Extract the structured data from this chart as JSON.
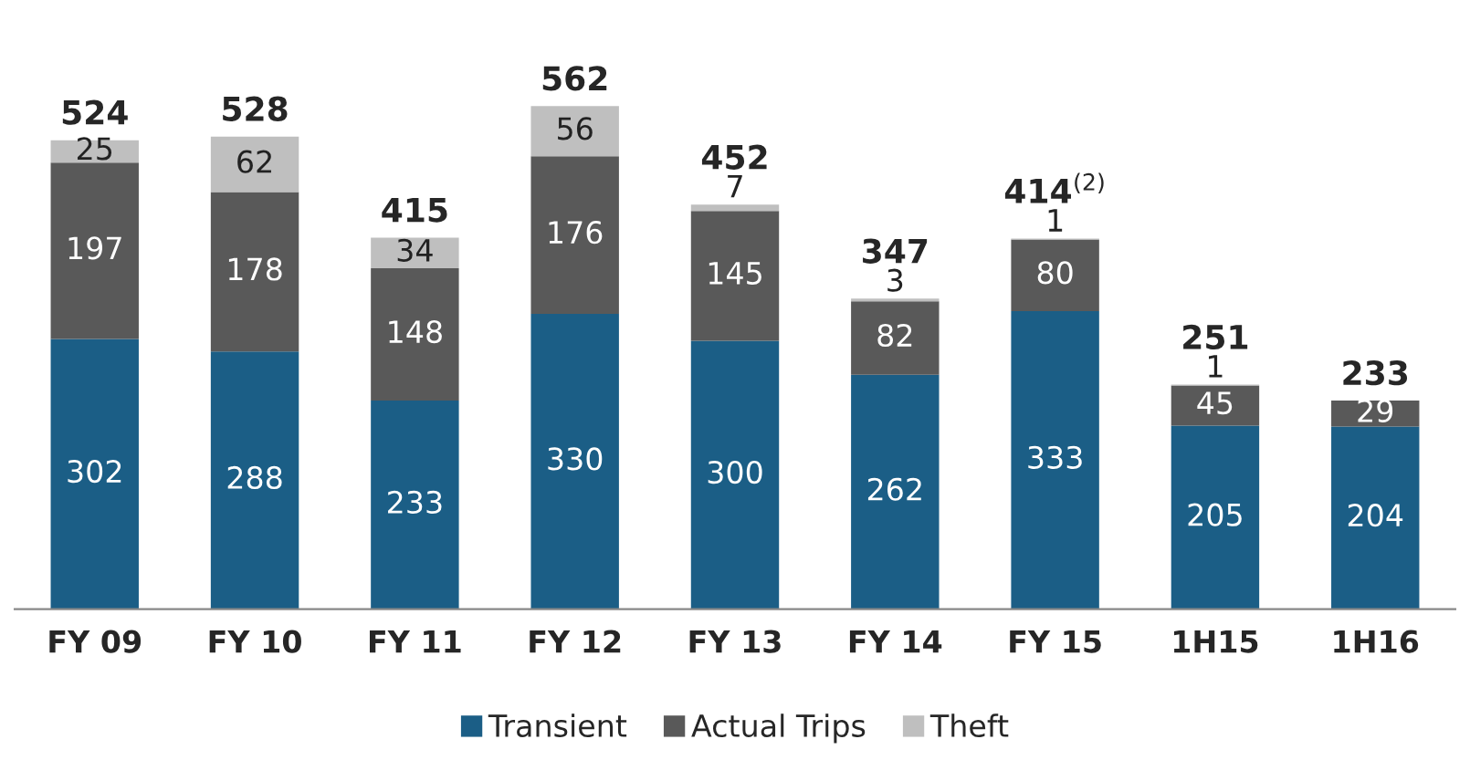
{
  "chart_data": {
    "type": "bar",
    "stacked": true,
    "data_labels": true,
    "legend": "bottom",
    "grid": false,
    "categories": [
      "FY 09",
      "FY 10",
      "FY 11",
      "FY 12",
      "FY 13",
      "FY 14",
      "FY 15",
      "1H15",
      "1H16"
    ],
    "series": [
      {
        "name": "Transient",
        "color": "#1b5e86",
        "values": [
          302,
          288,
          233,
          330,
          300,
          262,
          333,
          205,
          204
        ]
      },
      {
        "name": "Actual Trips",
        "color": "#595959",
        "values": [
          197,
          178,
          148,
          176,
          145,
          82,
          80,
          45,
          29
        ]
      },
      {
        "name": "Theft",
        "color": "#bfbfbf",
        "values": [
          25,
          62,
          34,
          56,
          7,
          3,
          1,
          1,
          null
        ]
      }
    ],
    "totals": [
      "524",
      "528",
      "415",
      "562",
      "452",
      "347",
      "414$^{(2)}$",
      "251",
      "233"
    ]
  }
}
